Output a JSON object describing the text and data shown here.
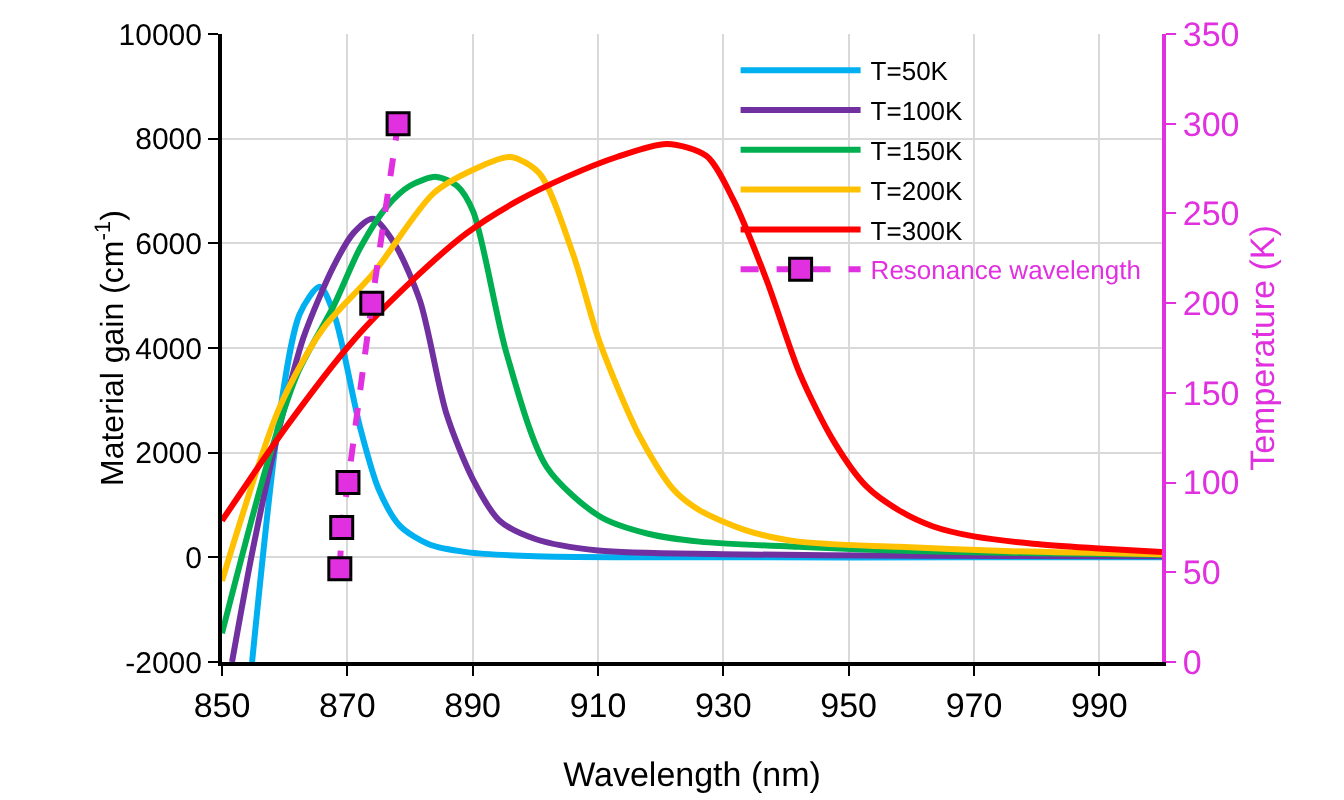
{
  "chart_data": {
    "type": "line",
    "xlabel": "Wavelength (nm)",
    "ylabel": "Material gain (cm$^{-1}$)",
    "y2label": "Temperature (K)",
    "xlim": [
      850,
      1000
    ],
    "xticks": [
      850,
      870,
      890,
      910,
      930,
      950,
      970,
      990
    ],
    "ylim": [
      -2000,
      10000
    ],
    "yticks": [
      -2000,
      0,
      2000,
      4000,
      6000,
      8000,
      10000
    ],
    "y2lim": [
      0,
      350
    ],
    "y2ticks": [
      0,
      50,
      100,
      150,
      200,
      250,
      300,
      350
    ],
    "grid": true,
    "legend": "top right",
    "marker": "none",
    "line_style": "solid",
    "series": [
      {
        "name": "T=50K",
        "color": "#00b0f0",
        "x": [
          854.8,
          859.2,
          862.4,
          865.6,
          868,
          872,
          875,
          878.4,
          883,
          889,
          900,
          930,
          970,
          1000
        ],
        "values": [
          -2000,
          2740,
          4650,
          5170,
          4600,
          2500,
          1300,
          600,
          250,
          100,
          20,
          0,
          0,
          0
        ]
      },
      {
        "name": "T=100K",
        "color": "#7030a0",
        "x": [
          851.6,
          855,
          859.2,
          863,
          867.8,
          871,
          874.1,
          877.5,
          881.6,
          885.8,
          890,
          894.3,
          900,
          910,
          930,
          960,
          1000
        ],
        "values": [
          -2000,
          200,
          2500,
          4200,
          5560,
          6200,
          6470,
          6000,
          4900,
          2750,
          1500,
          700,
          350,
          130,
          60,
          30,
          20
        ]
      },
      {
        "name": "T=150K",
        "color": "#00b050",
        "x": [
          850,
          857.1,
          862,
          867.8,
          872,
          876.3,
          880,
          884.2,
          887.5,
          890.1,
          895.4,
          901.8,
          910.3,
          918,
          926.2,
          942,
          960,
          980,
          1000
        ],
        "values": [
          -1450,
          1740,
          3500,
          4800,
          5900,
          6700,
          7100,
          7270,
          7100,
          6600,
          3900,
          1730,
          780,
          450,
          300,
          200,
          120,
          80,
          50
        ]
      },
      {
        "name": "T=200K",
        "color": "#ffc000",
        "x": [
          850,
          859.2,
          866,
          874.1,
          883.7,
          890,
          896,
          900.7,
          906,
          910.3,
          916.7,
          922,
          926.2,
          934,
          942,
          958,
          975,
          1000
        ],
        "values": [
          -450,
          2870,
          4350,
          5420,
          6950,
          7400,
          7650,
          7330,
          5800,
          4100,
          2300,
          1300,
          900,
          500,
          300,
          200,
          120,
          60
        ]
      },
      {
        "name": "T=300K",
        "color": "#ff0000",
        "x": [
          850,
          860.3,
          871,
          880,
          889,
          897,
          905,
          913,
          921,
          927.3,
          931.6,
          936.9,
          942.2,
          947.5,
          952.8,
          958,
          963.5,
          970,
          979.4,
          990,
          1000
        ],
        "values": [
          700,
          2500,
          4150,
          5250,
          6190,
          6800,
          7270,
          7650,
          7900,
          7670,
          6830,
          5300,
          3510,
          2240,
          1360,
          900,
          590,
          400,
          260,
          170,
          100
        ]
      },
      {
        "name": "Resonance wavelength",
        "color": "#e030e0",
        "axis": "y2",
        "marker": "square",
        "line_style": "dashed",
        "x": [
          868.8,
          869.1,
          870.1,
          873.9,
          878.1
        ],
        "values": [
          52,
          75,
          100,
          200,
          300
        ]
      }
    ]
  }
}
